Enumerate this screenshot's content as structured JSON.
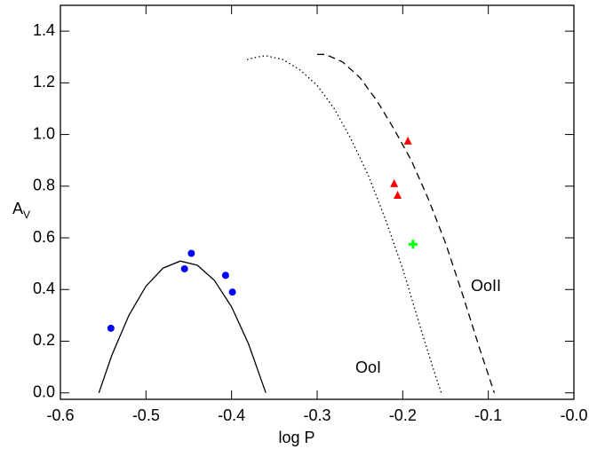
{
  "chart_data": {
    "type": "scatter",
    "xlabel": "log P",
    "ylabel": {
      "text": "A",
      "subscript": "V"
    },
    "xlim": [
      -0.6,
      0.0
    ],
    "ylim": [
      -0.025,
      1.5
    ],
    "xticks": [
      -0.6,
      -0.5,
      -0.4,
      -0.3,
      -0.2,
      -0.1,
      {
        "value": 0,
        "label": "-0.0"
      }
    ],
    "yticks": [
      {
        "value": 0,
        "label": "0.0"
      },
      0.2,
      0.4,
      0.6,
      0.8,
      {
        "value": 1,
        "label": "1.0"
      },
      1.2,
      1.4
    ],
    "series": [
      {
        "marker": "circle",
        "color": "#0000ff",
        "x": [
          -0.541,
          -0.455,
          -0.447,
          -0.407,
          -0.399
        ],
        "values": [
          0.25,
          0.48,
          0.54,
          0.455,
          0.39
        ]
      },
      {
        "marker": "triangle",
        "color": "#ff0000",
        "x": [
          -0.194,
          -0.21,
          -0.206
        ],
        "values": [
          0.975,
          0.81,
          0.765
        ]
      },
      {
        "marker": "cross",
        "color": "#00ff00",
        "x": [
          -0.188
        ],
        "values": [
          0.575
        ]
      },
      {
        "line": "solid",
        "color": "#000000",
        "x": [
          -0.555,
          -0.54,
          -0.52,
          -0.5,
          -0.48,
          -0.46,
          -0.44,
          -0.42,
          -0.4,
          -0.38,
          -0.36
        ],
        "values": [
          0,
          0.145,
          0.3,
          0.413,
          0.483,
          0.51,
          0.494,
          0.435,
          0.333,
          0.188,
          0
        ]
      },
      {
        "line": "dotted",
        "color": "#000000",
        "x": [
          -0.382,
          -0.37,
          -0.36,
          -0.34,
          -0.32,
          -0.3,
          -0.28,
          -0.26,
          -0.24,
          -0.22,
          -0.2,
          -0.18,
          -0.165,
          -0.155
        ],
        "values": [
          1.29,
          1.3,
          1.305,
          1.29,
          1.25,
          1.19,
          1.1,
          0.98,
          0.84,
          0.67,
          0.48,
          0.26,
          0.1,
          0
        ]
      },
      {
        "line": "dashed",
        "color": "#000000",
        "x": [
          -0.3,
          -0.29,
          -0.27,
          -0.25,
          -0.23,
          -0.21,
          -0.19,
          -0.17,
          -0.15,
          -0.13,
          -0.11,
          -0.1,
          -0.093
        ],
        "values": [
          1.31,
          1.31,
          1.28,
          1.22,
          1.13,
          1.02,
          0.9,
          0.75,
          0.58,
          0.38,
          0.17,
          0.07,
          0
        ]
      }
    ],
    "annotations": [
      {
        "text": "OoI"
      },
      {
        "text": "OoII"
      }
    ]
  }
}
